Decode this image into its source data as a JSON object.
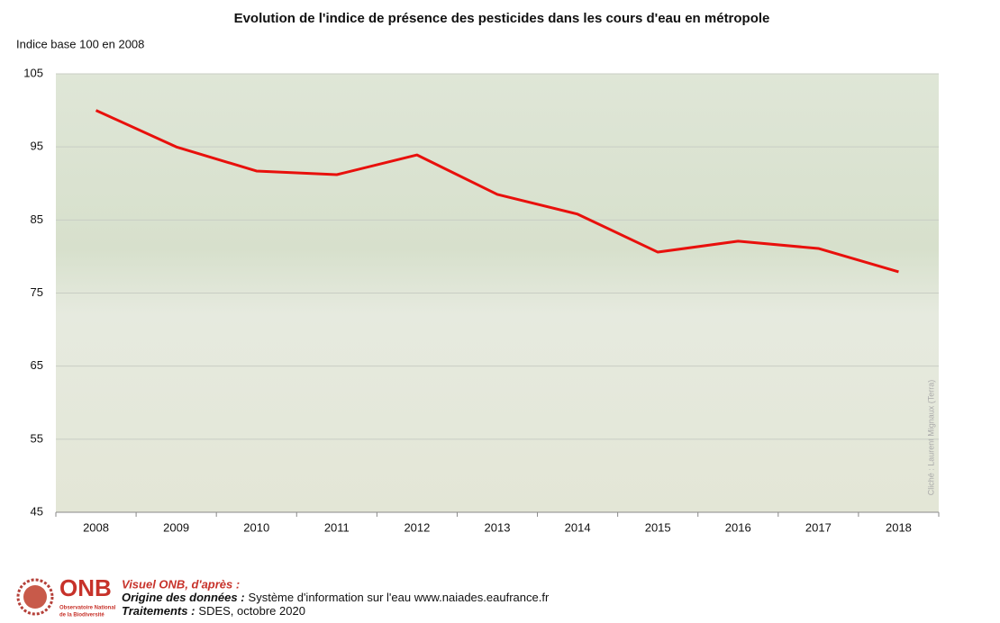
{
  "chart_data": {
    "type": "line",
    "title": "Evolution de l'indice de présence des pesticides dans les cours d'eau en métropole",
    "y_label": "Indice base 100 en 2008",
    "categories": [
      "2008",
      "2009",
      "2010",
      "2011",
      "2012",
      "2013",
      "2014",
      "2015",
      "2016",
      "2017",
      "2018"
    ],
    "values": [
      100,
      95,
      91.7,
      91.2,
      93.9,
      88.5,
      85.8,
      80.6,
      82.1,
      81.1,
      77.9
    ],
    "color": "#e8100c",
    "ylim": [
      45,
      105
    ],
    "yticks": [
      45,
      55,
      65,
      75,
      85,
      95,
      105
    ],
    "grid": true,
    "photo_credit": "Cliché : Laurent Mignaux (Terra)"
  },
  "footer": {
    "logo": "ONB",
    "logo_subtitle_1": "Observatoire National",
    "logo_subtitle_2": "de la Biodiversité",
    "intro": "Visuel ONB, d'après :",
    "origin_label": "Origine des données :",
    "origin_text": "Système d'information sur l'eau www.naiades.eaufrance.fr",
    "processing_label": "Traitements :",
    "processing_text": "SDES, octobre 2020"
  }
}
